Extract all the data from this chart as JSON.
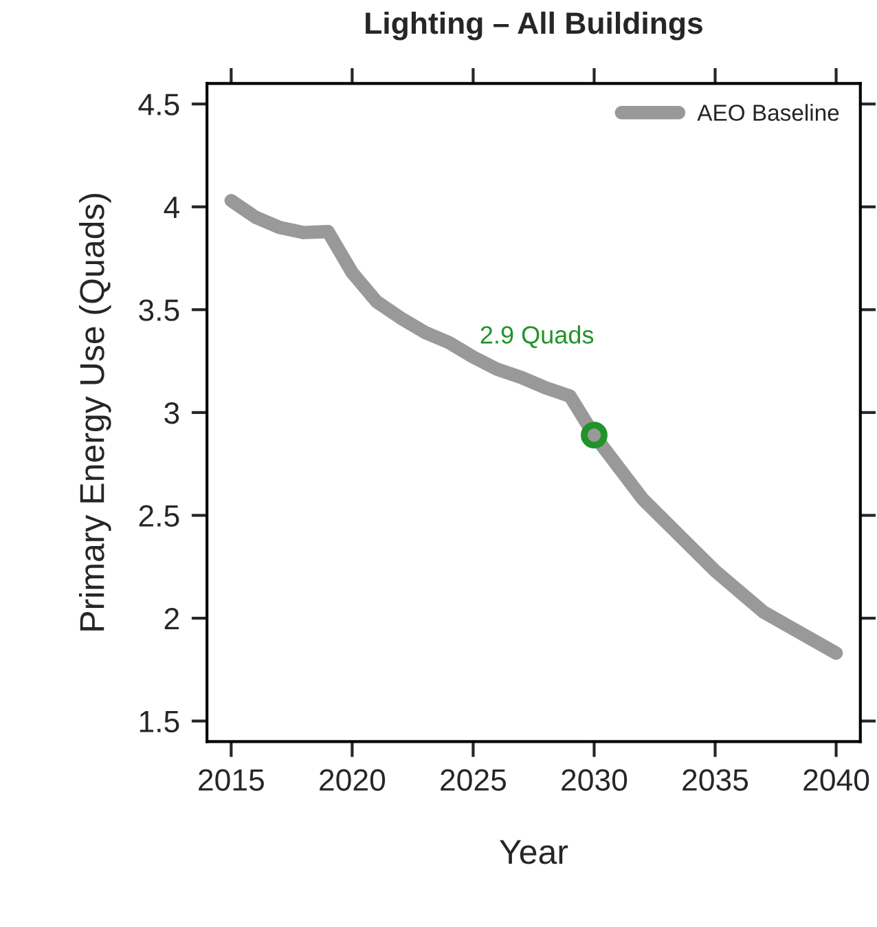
{
  "chart_data": {
    "type": "line",
    "title": "Lighting – All Buildings",
    "xlabel": "Year",
    "ylabel": "Primary Energy Use (Quads)",
    "x": [
      2015,
      2016,
      2017,
      2018,
      2019,
      2020,
      2021,
      2022,
      2023,
      2024,
      2025,
      2026,
      2027,
      2028,
      2029,
      2030,
      2032,
      2035,
      2037,
      2040
    ],
    "series": [
      {
        "name": "AEO Baseline",
        "color": "#999999",
        "values": [
          4.03,
          3.95,
          3.9,
          3.875,
          3.88,
          3.68,
          3.54,
          3.46,
          3.39,
          3.34,
          3.27,
          3.21,
          3.17,
          3.12,
          3.08,
          2.89,
          2.58,
          2.23,
          2.03,
          1.83
        ]
      },
      {
        "type": "scatter",
        "color": "#22922b",
        "marker": "circle",
        "x": [
          2030
        ],
        "values": [
          2.89
        ]
      }
    ],
    "annotations": [
      "2.9 Quads"
    ],
    "xlim": [
      2014,
      2041
    ],
    "xticks": [
      2015,
      2020,
      2025,
      2030,
      2035,
      2040
    ],
    "ylim": [
      1.4,
      4.6
    ],
    "yticks": [
      1.5,
      2,
      2.5,
      3,
      3.5,
      4,
      4.5
    ],
    "legend": "top right",
    "line_style": "solid"
  }
}
